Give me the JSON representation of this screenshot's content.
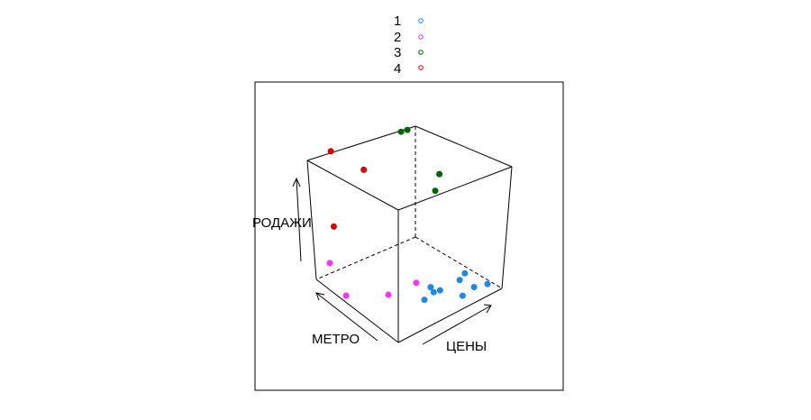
{
  "chart_data": {
    "type": "scatter",
    "title": "",
    "projection": "3d-cube",
    "axes": {
      "x": {
        "label": "ЦЕНЫ"
      },
      "y": {
        "label": "МЕТРО"
      },
      "z": {
        "label": "РОДАЖИ"
      }
    },
    "legend": {
      "placement": "top-center",
      "entries": [
        {
          "name": "1",
          "color": "#1e88e5"
        },
        {
          "name": "2",
          "color": "#ff33ff"
        },
        {
          "name": "3",
          "color": "#006400"
        },
        {
          "name": "4",
          "color": "#d40000"
        }
      ]
    },
    "series": [
      {
        "name": "1",
        "color": "#1e88e5",
        "points": [
          [
            0.55,
            0.3,
            0.05
          ],
          [
            0.6,
            0.25,
            0.03
          ],
          [
            0.75,
            0.2,
            0.07
          ],
          [
            0.85,
            0.15,
            0.0
          ],
          [
            0.8,
            0.2,
            0.1
          ],
          [
            0.5,
            0.2,
            0.08
          ],
          [
            0.45,
            0.25,
            0.02
          ],
          [
            0.7,
            0.1,
            0.02
          ],
          [
            0.9,
            0.05,
            0.05
          ]
        ]
      },
      {
        "name": "2",
        "color": "#ff33ff",
        "points": [
          [
            0.05,
            0.9,
            0.15
          ],
          [
            0.05,
            0.7,
            0.0
          ],
          [
            0.3,
            0.5,
            0.0
          ],
          [
            0.45,
            0.35,
            0.1
          ]
        ]
      },
      {
        "name": "3",
        "color": "#006400",
        "points": [
          [
            0.7,
            0.85,
            0.9
          ],
          [
            0.8,
            0.9,
            0.85
          ],
          [
            0.95,
            0.7,
            0.55
          ],
          [
            0.95,
            0.75,
            0.4
          ]
        ]
      },
      {
        "name": "4",
        "color": "#d40000",
        "points": [
          [
            0.1,
            0.95,
            0.95
          ],
          [
            0.3,
            0.8,
            0.8
          ],
          [
            0.05,
            0.85,
            0.45
          ]
        ]
      }
    ]
  }
}
